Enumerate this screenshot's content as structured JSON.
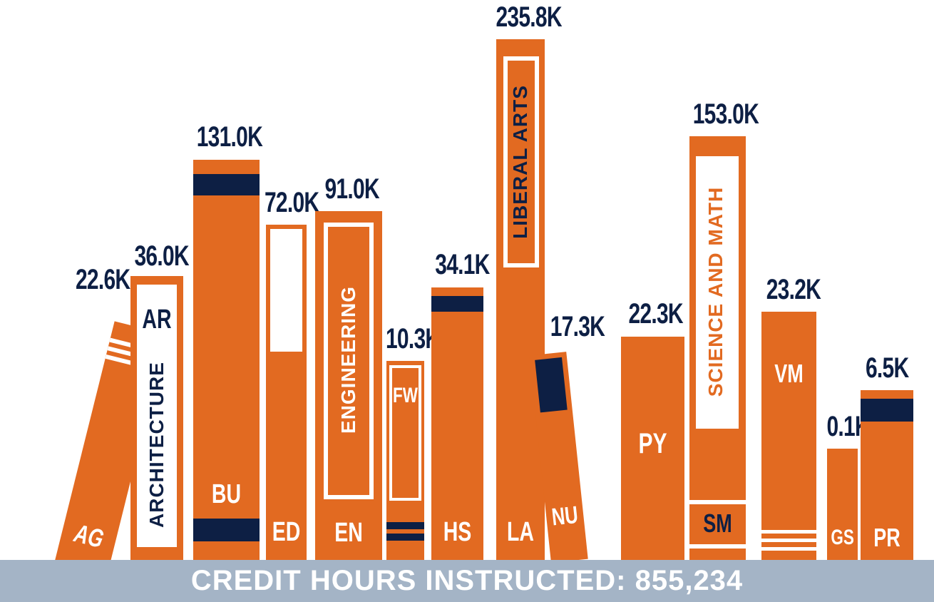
{
  "chart_data": {
    "type": "bar",
    "title": "",
    "categories": [
      "AG",
      "AR",
      "BU",
      "ED",
      "EN",
      "FW",
      "HS",
      "LA",
      "NU",
      "PY",
      "SM",
      "VM",
      "GS",
      "PR"
    ],
    "series": [
      {
        "values": [
          22.6,
          36.0,
          131.0,
          72.0,
          91.0,
          10.3,
          34.1,
          235.8,
          17.3,
          22.3,
          153.0,
          23.2,
          0.1,
          6.5
        ]
      }
    ],
    "value_labels": [
      "22.6K",
      "36.0K",
      "131.0K",
      "72.0K",
      "91.0K",
      "10.3K",
      "34.1K",
      "235.8K",
      "17.3K",
      "22.3K",
      "153.0K",
      "23.2K",
      "0.1K",
      "6.5K"
    ],
    "spine_titles": {
      "AR": "ARCHITECTURE",
      "EN": "ENGINEERING",
      "LA": "LIBERAL ARTS",
      "SM": "SCIENCE AND MATH"
    },
    "colors": {
      "book": "#e26a21",
      "accent": "#0d1f44",
      "footer": "#a4b4c6"
    }
  },
  "footer": {
    "text": "CREDIT HOURS INSTRUCTED: 855,234"
  }
}
